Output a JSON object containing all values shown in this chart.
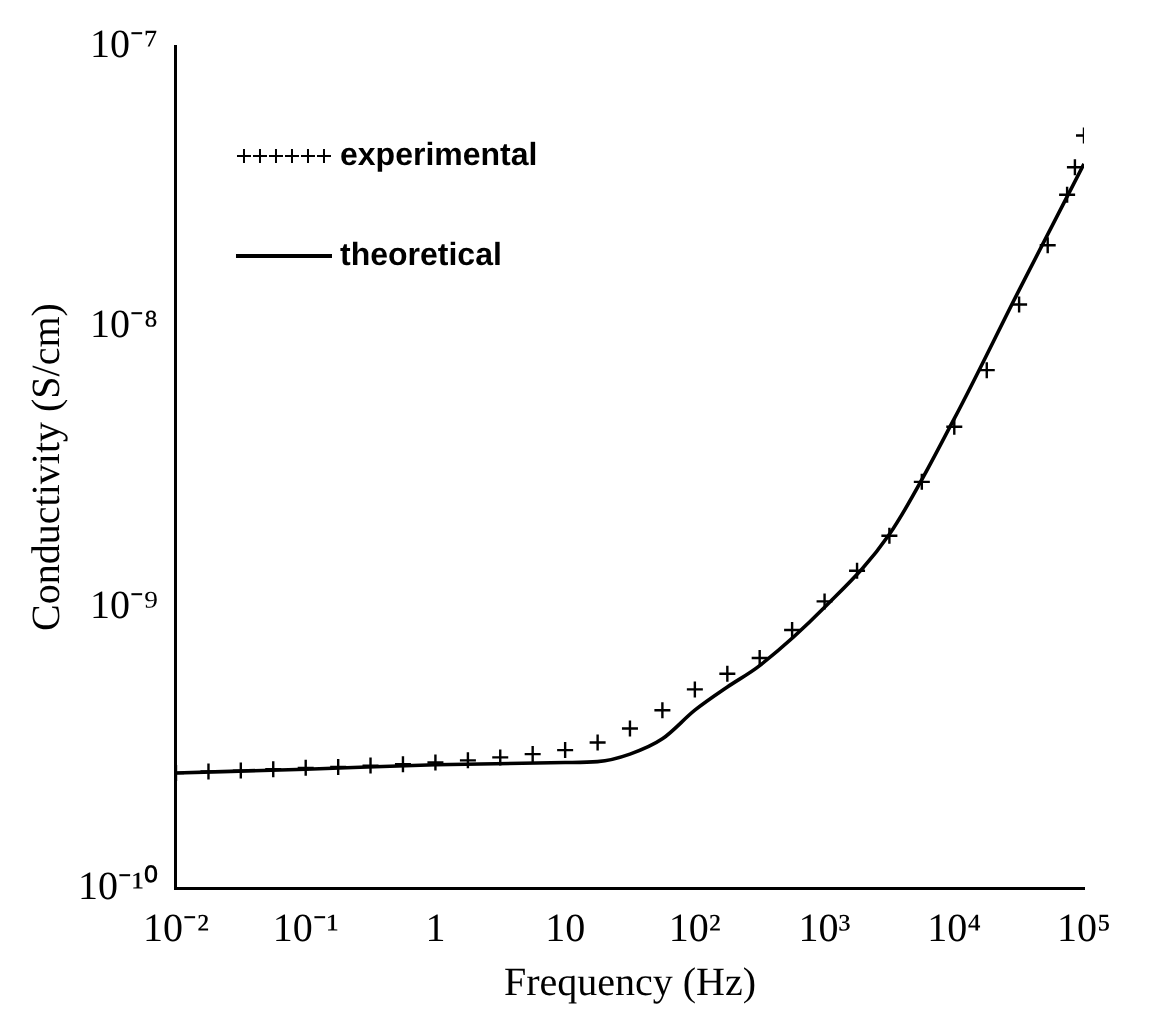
{
  "chart_data": {
    "type": "line",
    "xlabel": "Frequency (Hz)",
    "ylabel": "Conductivity (S/cm)",
    "log": "xy",
    "grid": false,
    "legend": "top left",
    "xlim": [
      0.01,
      100000
    ],
    "ylim": [
      1e-10,
      1e-07
    ],
    "xticks": [
      {
        "value": 0.01,
        "label": "10⁻²"
      },
      {
        "value": 0.1,
        "label": "10⁻¹"
      },
      1,
      10,
      {
        "value": 100,
        "label": "10²"
      },
      {
        "value": 1000,
        "label": "10³"
      },
      {
        "value": 10000,
        "label": "10⁴"
      },
      {
        "value": 100000,
        "label": "10⁵"
      }
    ],
    "yticks": [
      {
        "value": 1e-10,
        "label": "10⁻¹⁰"
      },
      {
        "value": 1e-09,
        "label": "10⁻⁹"
      },
      {
        "value": 1e-08,
        "label": "10⁻⁸"
      },
      {
        "value": 1e-07,
        "label": "10⁻⁷"
      }
    ],
    "series": [
      {
        "name": "experimental",
        "type": "scatter",
        "marker": "cross",
        "color": "#000000",
        "x": [
          0.01,
          0.0178,
          0.0316,
          0.0562,
          0.1,
          0.178,
          0.316,
          0.562,
          1,
          1.78,
          3.16,
          5.62,
          10,
          17.8,
          31.6,
          56.2,
          100,
          178,
          316,
          562,
          1000,
          1780,
          3160,
          5620,
          10000,
          17800,
          31600,
          52500,
          74100,
          85100,
          100000
        ],
        "values": [
          2.57e-10,
          2.6e-10,
          2.62e-10,
          2.65e-10,
          2.68e-10,
          2.7e-10,
          2.73e-10,
          2.76e-10,
          2.8e-10,
          2.85e-10,
          2.92e-10,
          3e-10,
          3.1e-10,
          3.3e-10,
          3.7e-10,
          4.3e-10,
          5.1e-10,
          5.8e-10,
          6.6e-10,
          8.3e-10,
          1.05e-09,
          1.35e-09,
          1.8e-09,
          2.8e-09,
          4.4e-09,
          7e-09,
          1.2e-08,
          1.95e-08,
          2.95e-08,
          3.7e-08,
          4.8e-08
        ]
      },
      {
        "name": "theoretical",
        "type": "line",
        "marker": "none",
        "line_style": "solid",
        "color": "#000000",
        "x": [
          0.01,
          0.1,
          1,
          10,
          17.8,
          31.6,
          56.2,
          100,
          178,
          316,
          1000,
          3160,
          10000,
          31600,
          100000
        ],
        "values": [
          2.57e-10,
          2.65e-10,
          2.75e-10,
          2.8e-10,
          2.82e-10,
          3e-10,
          3.4e-10,
          4.3e-10,
          5.2e-10,
          6.2e-10,
          1e-09,
          1.82e-09,
          4.7e-09,
          1.35e-08,
          3.8e-08
        ]
      }
    ]
  }
}
